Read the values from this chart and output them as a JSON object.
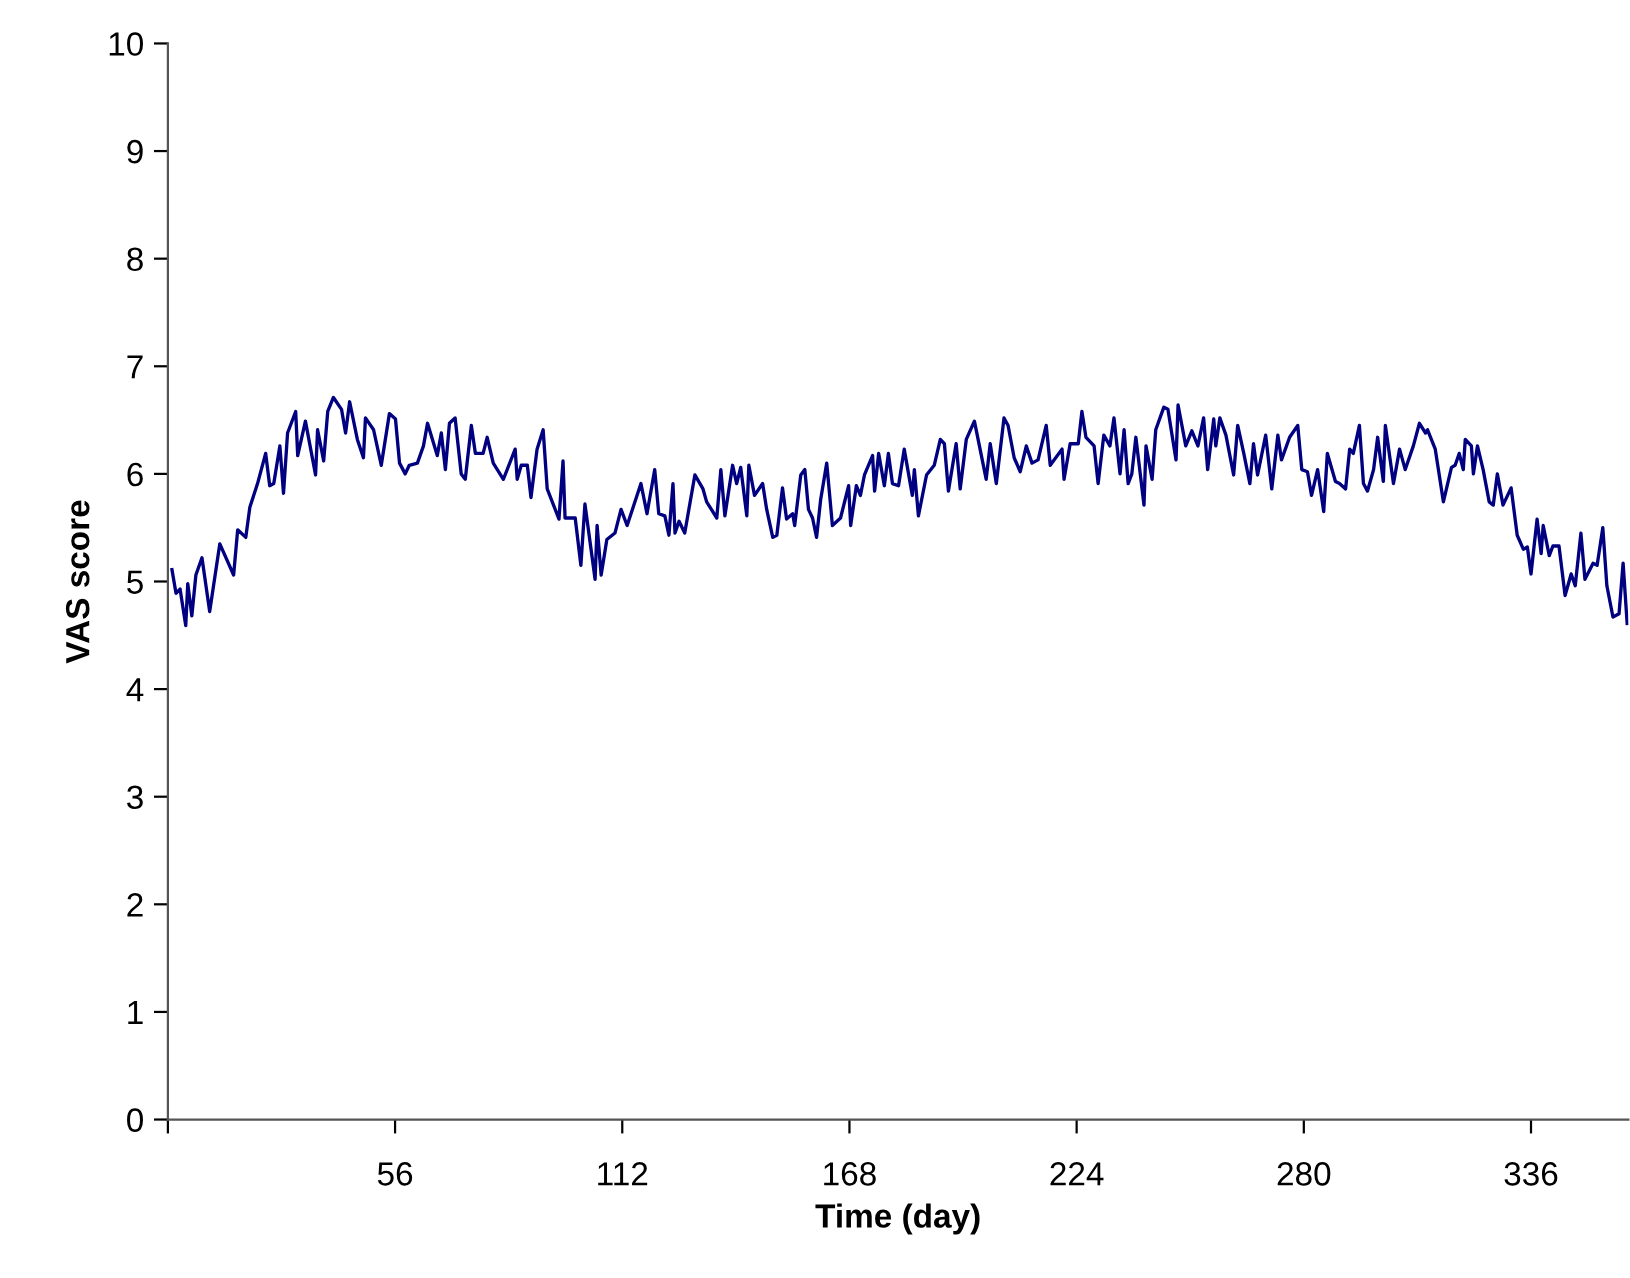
{
  "chart_data": {
    "type": "line",
    "xlabel": "Time (day)",
    "ylabel": "VAS score",
    "xlim": [
      0,
      360
    ],
    "xticks": [
      {
        "value": 0,
        "label": null
      },
      56,
      112,
      168,
      224,
      280,
      336
    ],
    "ylim": [
      0,
      10
    ],
    "yticks": [
      0,
      1,
      2,
      3,
      4,
      5,
      6,
      7,
      8,
      9,
      10
    ],
    "grid": false,
    "marker": "none",
    "line_style": "solid",
    "series": [
      {
        "color": "#000080",
        "x": [
          1.0,
          2.0,
          3.0,
          4.4,
          4.9,
          5.9,
          6.9,
          8.4,
          10.3,
          12.8,
          16.2,
          17.2,
          19.2,
          20.2,
          22.1,
          24.1,
          25.1,
          26.1,
          27.6,
          28.5,
          29.5,
          31.5,
          32.0,
          33.9,
          36.4,
          36.9,
          38.4,
          39.4,
          40.8,
          42.8,
          43.8,
          44.8,
          46.7,
          48.2,
          48.7,
          50.7,
          52.6,
          54.6,
          56.1,
          57.1,
          58.5,
          59.5,
          61.5,
          63.0,
          64.0,
          66.4,
          67.4,
          68.4,
          69.4,
          70.8,
          72.3,
          73.3,
          74.8,
          75.8,
          77.7,
          78.7,
          80.2,
          82.7,
          85.6,
          86.1,
          87.1,
          88.6,
          89.5,
          91.0,
          92.5,
          93.5,
          96.4,
          97.4,
          97.9,
          100.4,
          101.8,
          102.8,
          105.3,
          105.8,
          106.8,
          108.2,
          110.2,
          111.7,
          113.2,
          116.6,
          118.1,
          120.0,
          121.0,
          122.5,
          123.5,
          124.5,
          125.0,
          126.0,
          127.4,
          129.9,
          131.9,
          132.8,
          135.3,
          136.3,
          137.3,
          139.2,
          140.2,
          141.2,
          142.7,
          143.2,
          144.6,
          146.6,
          147.6,
          149.1,
          150.1,
          151.5,
          152.5,
          154.0,
          154.5,
          156.0,
          157.0,
          157.9,
          158.9,
          159.9,
          160.9,
          162.4,
          163.8,
          165.8,
          167.8,
          168.3,
          169.7,
          170.7,
          171.7,
          173.7,
          174.2,
          175.2,
          176.6,
          177.6,
          178.6,
          180.1,
          181.5,
          183.5,
          184.0,
          185.0,
          187.0,
          188.9,
          190.4,
          191.4,
          192.4,
          194.3,
          195.3,
          196.8,
          198.8,
          200.2,
          201.7,
          202.7,
          204.2,
          206.1,
          207.1,
          208.6,
          210.1,
          211.6,
          213.0,
          214.5,
          216.5,
          217.5,
          220.4,
          220.9,
          222.4,
          224.4,
          225.3,
          226.3,
          228.3,
          229.3,
          230.7,
          232.2,
          233.2,
          234.7,
          235.7,
          236.7,
          237.6,
          238.6,
          240.6,
          241.1,
          242.6,
          243.5,
          245.5,
          246.5,
          248.5,
          249.0,
          250.9,
          252.4,
          253.9,
          255.3,
          256.3,
          257.8,
          258.3,
          259.3,
          260.8,
          262.7,
          263.7,
          265.2,
          266.7,
          267.6,
          268.6,
          270.6,
          272.1,
          273.6,
          274.5,
          276.5,
          278.5,
          279.5,
          280.9,
          281.9,
          283.4,
          284.9,
          285.8,
          287.8,
          288.8,
          290.3,
          291.3,
          292.2,
          293.7,
          294.7,
          295.7,
          297.2,
          298.2,
          299.6,
          300.1,
          302.1,
          303.6,
          305.0,
          307.0,
          308.5,
          310.0,
          310.5,
          312.4,
          314.4,
          316.4,
          317.3,
          318.3,
          319.3,
          319.8,
          321.3,
          321.8,
          322.8,
          324.2,
          325.7,
          326.7,
          327.7,
          329.1,
          331.1,
          332.6,
          334.1,
          335.1,
          336.0,
          337.5,
          338.5,
          339.0,
          340.5,
          341.4,
          342.9,
          344.4,
          345.9,
          346.9,
          348.3,
          349.3,
          351.3,
          352.3,
          353.7,
          354.7,
          356.2,
          357.7,
          358.7,
          359.7
        ],
        "values": [
          5.11,
          4.89,
          4.93,
          4.59,
          4.98,
          4.68,
          5.06,
          5.22,
          4.72,
          5.35,
          5.06,
          5.48,
          5.41,
          5.69,
          5.91,
          6.19,
          5.89,
          5.91,
          6.26,
          5.82,
          6.38,
          6.58,
          6.17,
          6.49,
          5.99,
          6.41,
          6.12,
          6.58,
          6.71,
          6.6,
          6.38,
          6.67,
          6.32,
          6.15,
          6.52,
          6.41,
          6.08,
          6.56,
          6.51,
          6.1,
          6.0,
          6.08,
          6.1,
          6.26,
          6.47,
          6.17,
          6.38,
          6.04,
          6.47,
          6.52,
          6.0,
          5.95,
          6.45,
          6.19,
          6.19,
          6.34,
          6.1,
          5.95,
          6.23,
          5.95,
          6.08,
          6.08,
          5.78,
          6.23,
          6.41,
          5.86,
          5.58,
          6.12,
          5.59,
          5.59,
          5.15,
          5.72,
          5.02,
          5.52,
          5.06,
          5.39,
          5.45,
          5.67,
          5.52,
          5.91,
          5.63,
          6.04,
          5.63,
          5.61,
          5.43,
          5.91,
          5.45,
          5.56,
          5.45,
          5.99,
          5.86,
          5.74,
          5.59,
          6.04,
          5.61,
          6.08,
          5.91,
          6.06,
          5.61,
          6.08,
          5.8,
          5.91,
          5.67,
          5.41,
          5.43,
          5.87,
          5.58,
          5.63,
          5.52,
          5.99,
          6.04,
          5.67,
          5.59,
          5.41,
          5.76,
          6.1,
          5.52,
          5.59,
          5.89,
          5.52,
          5.89,
          5.8,
          5.99,
          6.17,
          5.84,
          6.19,
          5.89,
          6.19,
          5.91,
          5.89,
          6.23,
          5.8,
          6.04,
          5.61,
          5.99,
          6.08,
          6.32,
          6.28,
          5.84,
          6.28,
          5.86,
          6.32,
          6.49,
          6.23,
          5.95,
          6.28,
          5.91,
          6.52,
          6.45,
          6.15,
          6.02,
          6.26,
          6.1,
          6.13,
          6.45,
          6.08,
          6.23,
          5.95,
          6.28,
          6.28,
          6.58,
          6.34,
          6.26,
          5.91,
          6.36,
          6.26,
          6.52,
          6.0,
          6.41,
          5.91,
          6.0,
          6.34,
          5.71,
          6.26,
          5.95,
          6.41,
          6.62,
          6.6,
          6.13,
          6.64,
          6.26,
          6.4,
          6.26,
          6.52,
          6.04,
          6.51,
          6.26,
          6.52,
          6.36,
          5.99,
          6.45,
          6.19,
          5.91,
          6.28,
          5.99,
          6.36,
          5.86,
          6.36,
          6.13,
          6.34,
          6.45,
          6.04,
          6.02,
          5.8,
          6.04,
          5.65,
          6.19,
          5.93,
          5.91,
          5.86,
          6.23,
          6.19,
          6.45,
          5.91,
          5.84,
          6.04,
          6.34,
          5.93,
          6.45,
          5.91,
          6.23,
          6.04,
          6.26,
          6.47,
          6.38,
          6.41,
          6.23,
          5.74,
          6.06,
          6.08,
          6.19,
          6.04,
          6.32,
          6.26,
          6.0,
          6.26,
          6.04,
          5.74,
          5.71,
          6.0,
          5.71,
          5.87,
          5.43,
          5.3,
          5.32,
          5.07,
          5.58,
          5.26,
          5.52,
          5.24,
          5.33,
          5.33,
          4.87,
          5.07,
          4.96,
          5.45,
          5.02,
          5.17,
          5.15,
          5.5,
          4.96,
          4.67,
          4.7,
          5.17,
          4.61
        ]
      }
    ]
  }
}
